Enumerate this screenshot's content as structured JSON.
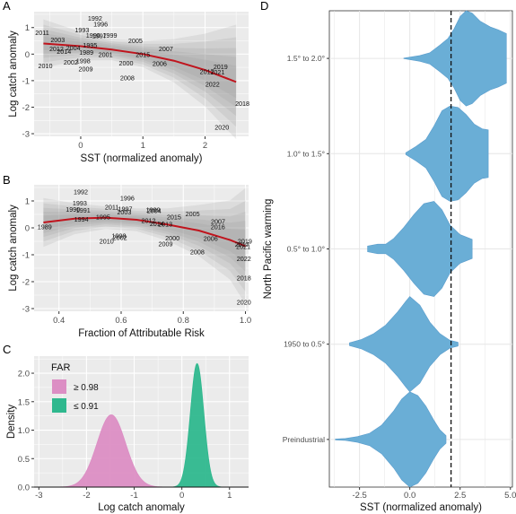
{
  "colors": {
    "panel_bg": "#ebebeb",
    "grid": "#ffffff",
    "fit_line": "#c0141d",
    "ribbon": "#8c8c8c",
    "violin": "#6aaed6",
    "far_high": "#dc8ec4",
    "far_low": "#2fb88e"
  },
  "chart_data": [
    {
      "panel": "A",
      "type": "scatter",
      "xlabel": "SST (normalized anomaly)",
      "ylabel": "Log catch anomaly",
      "xlim": [
        -0.75,
        2.7
      ],
      "ylim": [
        -3.1,
        1.6
      ],
      "xticks": [
        0,
        1,
        2
      ],
      "yticks": [
        1,
        0,
        -1,
        -2,
        -3
      ],
      "points": [
        {
          "label": "1992",
          "x": 0.23,
          "y": 1.37
        },
        {
          "label": "1996",
          "x": 0.32,
          "y": 1.15
        },
        {
          "label": "2011",
          "x": -0.62,
          "y": 0.83
        },
        {
          "label": "1993",
          "x": 0.02,
          "y": 0.93
        },
        {
          "label": "1990",
          "x": 0.2,
          "y": 0.72
        },
        {
          "label": "1997",
          "x": 0.3,
          "y": 0.7
        },
        {
          "label": "1999",
          "x": 0.47,
          "y": 0.72
        },
        {
          "label": "2003",
          "x": -0.37,
          "y": 0.56
        },
        {
          "label": "2005",
          "x": 0.88,
          "y": 0.52
        },
        {
          "label": "1995",
          "x": 0.15,
          "y": 0.35
        },
        {
          "label": "2004",
          "x": -0.12,
          "y": 0.25
        },
        {
          "label": "2012",
          "x": -0.39,
          "y": 0.21
        },
        {
          "label": "2014",
          "x": -0.27,
          "y": 0.12
        },
        {
          "label": "1989",
          "x": 0.09,
          "y": 0.07
        },
        {
          "label": "2001",
          "x": 0.4,
          "y": 0.0
        },
        {
          "label": "2007",
          "x": 1.37,
          "y": 0.22
        },
        {
          "label": "2015",
          "x": 1.0,
          "y": 0.0
        },
        {
          "label": "1998",
          "x": 0.04,
          "y": -0.24
        },
        {
          "label": "2002",
          "x": -0.16,
          "y": -0.3
        },
        {
          "label": "2000",
          "x": 0.73,
          "y": -0.33
        },
        {
          "label": "2006",
          "x": 1.27,
          "y": -0.35
        },
        {
          "label": "2010",
          "x": -0.57,
          "y": -0.43
        },
        {
          "label": "2009",
          "x": 0.08,
          "y": -0.55
        },
        {
          "label": "2019",
          "x": 2.25,
          "y": -0.46
        },
        {
          "label": "2017",
          "x": 2.03,
          "y": -0.65
        },
        {
          "label": "2021",
          "x": 2.2,
          "y": -0.67
        },
        {
          "label": "2008",
          "x": 0.75,
          "y": -0.88
        },
        {
          "label": "2022",
          "x": 2.12,
          "y": -1.12
        },
        {
          "label": "2018",
          "x": 2.6,
          "y": -1.85
        },
        {
          "label": "2020",
          "x": 2.27,
          "y": -2.75
        }
      ],
      "fit": {
        "x": [
          -0.6,
          0,
          0.5,
          1,
          1.5,
          2,
          2.5
        ],
        "y": [
          0.4,
          0.3,
          0.17,
          0.0,
          -0.25,
          -0.6,
          -1.05
        ]
      },
      "grid": true
    },
    {
      "panel": "B",
      "type": "scatter",
      "xlabel": "Fraction of Attributable Risk",
      "ylabel": "Log catch anomaly",
      "xlim": [
        0.32,
        1.01
      ],
      "ylim": [
        -3.1,
        1.6
      ],
      "xticks": [
        "0.4",
        "0.6",
        "0.8",
        "1.0"
      ],
      "yticks": [
        1,
        0,
        -1,
        -2,
        -3
      ],
      "points": [
        {
          "label": "1992",
          "x": 0.47,
          "y": 1.35
        },
        {
          "label": "1996",
          "x": 0.62,
          "y": 1.12
        },
        {
          "label": "1993",
          "x": 0.467,
          "y": 0.93
        },
        {
          "label": "2011",
          "x": 0.57,
          "y": 0.79
        },
        {
          "label": "1990",
          "x": 0.445,
          "y": 0.7
        },
        {
          "label": "1991",
          "x": 0.478,
          "y": 0.66
        },
        {
          "label": "1997",
          "x": 0.613,
          "y": 0.71
        },
        {
          "label": "2003",
          "x": 0.61,
          "y": 0.6
        },
        {
          "label": "1999",
          "x": 0.703,
          "y": 0.69
        },
        {
          "label": "2004",
          "x": 0.706,
          "y": 0.65
        },
        {
          "label": "2005",
          "x": 0.83,
          "y": 0.53
        },
        {
          "label": "1995",
          "x": 0.542,
          "y": 0.42
        },
        {
          "label": "1994",
          "x": 0.472,
          "y": 0.33
        },
        {
          "label": "2015",
          "x": 0.77,
          "y": 0.41
        },
        {
          "label": "2012",
          "x": 0.688,
          "y": 0.28
        },
        {
          "label": "2014",
          "x": 0.715,
          "y": 0.17
        },
        {
          "label": "2013",
          "x": 0.742,
          "y": 0.15
        },
        {
          "label": "1989",
          "x": 0.354,
          "y": 0.05
        },
        {
          "label": "2007",
          "x": 0.912,
          "y": 0.25
        },
        {
          "label": "2016",
          "x": 0.911,
          "y": 0.05
        },
        {
          "label": "1998",
          "x": 0.593,
          "y": -0.28
        },
        {
          "label": "2002",
          "x": 0.596,
          "y": -0.35
        },
        {
          "label": "2000",
          "x": 0.765,
          "y": -0.37
        },
        {
          "label": "2010",
          "x": 0.553,
          "y": -0.48
        },
        {
          "label": "2009",
          "x": 0.743,
          "y": -0.58
        },
        {
          "label": "2006",
          "x": 0.888,
          "y": -0.39
        },
        {
          "label": "2019",
          "x": 0.998,
          "y": -0.48
        },
        {
          "label": "2017",
          "x": 0.989,
          "y": -0.6
        },
        {
          "label": "2021",
          "x": 0.993,
          "y": -0.69
        },
        {
          "label": "2008",
          "x": 0.845,
          "y": -0.89
        },
        {
          "label": "2022",
          "x": 0.995,
          "y": -1.13
        },
        {
          "label": "2018",
          "x": 0.995,
          "y": -1.85
        },
        {
          "label": "2020",
          "x": 0.995,
          "y": -2.75
        }
      ],
      "fit": {
        "x": [
          0.35,
          0.45,
          0.55,
          0.65,
          0.75,
          0.85,
          0.95,
          1.0
        ],
        "y": [
          0.2,
          0.34,
          0.38,
          0.3,
          0.12,
          -0.1,
          -0.45,
          -0.68
        ]
      },
      "grid": true
    },
    {
      "panel": "C",
      "type": "area",
      "xlabel": "Log catch anomaly",
      "ylabel": "Density",
      "xlim": [
        -3.1,
        1.4
      ],
      "ylim": [
        0,
        2.3
      ],
      "xticks": [
        "-3",
        "-2",
        "-1",
        "0",
        "1"
      ],
      "yticks": [
        "0.0",
        "0.5",
        "1.0",
        "1.5",
        "2.0"
      ],
      "legend": {
        "title": "FAR",
        "position": "top-left"
      },
      "series": [
        {
          "name": "≥ 0.98",
          "mean": -1.48,
          "sd": 0.3,
          "peak": 1.27
        },
        {
          "name": "≤ 0.91",
          "mean": 0.32,
          "sd": 0.14,
          "peak": 2.17
        }
      ]
    },
    {
      "panel": "D",
      "type": "violin",
      "xlabel": "SST (normalized anomaly)",
      "ylabel": "North Pacific warming",
      "xlim": [
        -4.0,
        5.1
      ],
      "xticks": [
        "-2.5",
        "0.0",
        "2.5",
        "5.0"
      ],
      "reference_line": 2.05,
      "categories": [
        "1.5° to 2.0°",
        "1.0° to 1.5°",
        "0.5° to 1.0°",
        "1950 to 0.5°",
        "Preindustrial"
      ],
      "violins": [
        {
          "min": -0.3,
          "max": 4.8,
          "profile": [
            [
              -0.3,
              0.005
            ],
            [
              0.5,
              0.06
            ],
            [
              1.0,
              0.12
            ],
            [
              1.5,
              0.28
            ],
            [
              1.9,
              0.42
            ],
            [
              2.2,
              0.62
            ],
            [
              2.5,
              0.88
            ],
            [
              2.8,
              1.0
            ],
            [
              3.1,
              0.95
            ],
            [
              3.5,
              0.78
            ],
            [
              4.0,
              0.66
            ],
            [
              4.4,
              0.6
            ],
            [
              4.8,
              0.52
            ]
          ]
        },
        {
          "min": -0.2,
          "max": 3.9,
          "profile": [
            [
              -0.2,
              0.02
            ],
            [
              0.3,
              0.15
            ],
            [
              0.8,
              0.3
            ],
            [
              1.2,
              0.58
            ],
            [
              1.6,
              0.9
            ],
            [
              2.0,
              1.0
            ],
            [
              2.4,
              0.97
            ],
            [
              2.8,
              0.82
            ],
            [
              3.2,
              0.62
            ],
            [
              3.6,
              0.52
            ],
            [
              3.9,
              0.5
            ]
          ]
        },
        {
          "min": -2.1,
          "max": 3.1,
          "profile": [
            [
              -2.1,
              0.06
            ],
            [
              -1.6,
              0.1
            ],
            [
              -1.2,
              0.1
            ],
            [
              -0.8,
              0.22
            ],
            [
              -0.3,
              0.45
            ],
            [
              0.2,
              0.72
            ],
            [
              0.7,
              0.95
            ],
            [
              1.2,
              1.0
            ],
            [
              1.6,
              0.82
            ],
            [
              2.0,
              0.5
            ],
            [
              2.5,
              0.3
            ],
            [
              3.1,
              0.2
            ]
          ]
        },
        {
          "min": -3.0,
          "max": 2.4,
          "profile": [
            [
              -3.0,
              0.03
            ],
            [
              -2.4,
              0.1
            ],
            [
              -1.8,
              0.22
            ],
            [
              -1.2,
              0.4
            ],
            [
              -0.6,
              0.68
            ],
            [
              -0.2,
              0.9
            ],
            [
              0.0,
              1.0
            ],
            [
              0.5,
              0.82
            ],
            [
              1.0,
              0.46
            ],
            [
              1.5,
              0.22
            ],
            [
              2.0,
              0.08
            ],
            [
              2.4,
              0.04
            ]
          ]
        },
        {
          "min": -3.7,
          "max": 1.8,
          "profile": [
            [
              -3.7,
              0.01
            ],
            [
              -3.2,
              0.02
            ],
            [
              -2.6,
              0.06
            ],
            [
              -2.0,
              0.13
            ],
            [
              -1.4,
              0.3
            ],
            [
              -0.8,
              0.6
            ],
            [
              -0.4,
              0.85
            ],
            [
              0.0,
              1.0
            ],
            [
              0.4,
              0.92
            ],
            [
              0.8,
              0.7
            ],
            [
              1.2,
              0.4
            ],
            [
              1.5,
              0.2
            ],
            [
              1.8,
              0.08
            ]
          ]
        }
      ]
    }
  ],
  "panel_labels": {
    "a": "A",
    "b": "B",
    "c": "C",
    "d": "D"
  }
}
